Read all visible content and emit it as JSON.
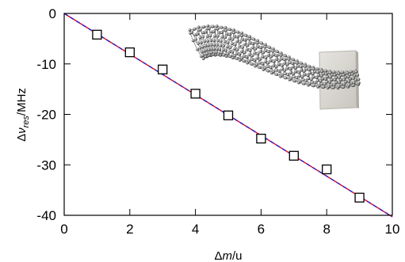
{
  "chart_data": {
    "type": "scatter",
    "title": "",
    "xlabel": "Δm/u",
    "ylabel": "Δν_res/MHz",
    "xlabel_parts": {
      "delta": "Δ",
      "var": "m",
      "unit": "/u"
    },
    "ylabel_parts": {
      "delta": "Δ",
      "var": "ν",
      "sub": "res",
      "unit": "/MHz"
    },
    "xlim": [
      0,
      10
    ],
    "ylim": [
      -40,
      0
    ],
    "xticks": [
      0,
      2,
      4,
      6,
      8,
      10
    ],
    "yticks": [
      0,
      -10,
      -20,
      -30,
      -40
    ],
    "grid": false,
    "legend": "none",
    "series": [
      {
        "kind": "markers",
        "marker": "open-square",
        "color": "#000000",
        "x": [
          1,
          2,
          3,
          4,
          5,
          6,
          7,
          8,
          9
        ],
        "y": [
          -4.2,
          -7.7,
          -11.1,
          -15.9,
          -20.2,
          -24.8,
          -28.2,
          -30.9,
          -36.5
        ]
      },
      {
        "kind": "line",
        "color": "#e8001c",
        "dash": "solid",
        "x": [
          0,
          10
        ],
        "y": [
          0,
          -40.3
        ]
      },
      {
        "kind": "line",
        "color": "#2020d0",
        "dash": "dashed",
        "x": [
          0,
          10
        ],
        "y": [
          0,
          -40.3
        ]
      }
    ],
    "inset_image": "carbon-nanotube-on-support"
  }
}
